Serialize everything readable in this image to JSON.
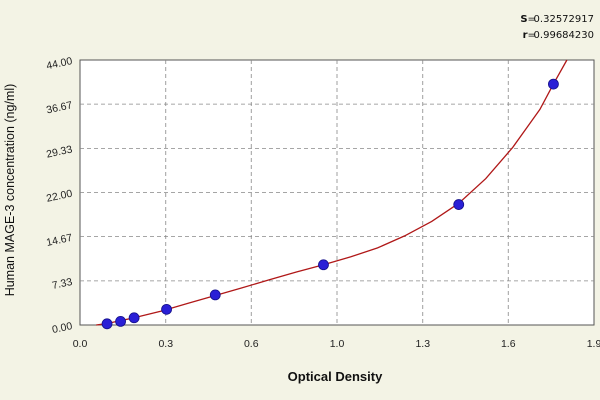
{
  "stats": {
    "s_label": "S",
    "s_value": "0.32572917",
    "r_label": "r",
    "r_value": "0.99684230"
  },
  "chart_data": {
    "type": "scatter",
    "xlabel": "Optical Density",
    "ylabel": "Human MAGE-3 concentration (ng/ml)",
    "xlim": [
      0.0,
      1.9
    ],
    "ylim": [
      0.0,
      44.0
    ],
    "x_ticks": [
      "0.0",
      "0.3",
      "0.6",
      "1.0",
      "1.3",
      "1.6",
      "1.9"
    ],
    "x_tick_values": [
      0.0,
      0.317,
      0.633,
      0.95,
      1.267,
      1.583,
      1.9
    ],
    "y_ticks": [
      "0.00",
      "7.33",
      "14.67",
      "22.00",
      "29.33",
      "36.67",
      "44.00"
    ],
    "y_tick_values": [
      0.0,
      7.33,
      14.67,
      22.0,
      29.33,
      36.67,
      44.0
    ],
    "grid": true,
    "series": [
      {
        "type": "scatter",
        "x": [
          0.1,
          0.15,
          0.2,
          0.32,
          0.5,
          0.9,
          1.4,
          1.75
        ],
        "y": [
          0.2,
          0.6,
          1.2,
          2.6,
          5.0,
          10.0,
          20.0,
          40.0
        ]
      },
      {
        "type": "line",
        "x": [
          0.06,
          0.1,
          0.2,
          0.3,
          0.4,
          0.5,
          0.6,
          0.7,
          0.8,
          0.9,
          1.0,
          1.1,
          1.2,
          1.3,
          1.4,
          1.5,
          1.6,
          1.7,
          1.75,
          1.8
        ],
        "y": [
          0.0,
          0.25,
          1.2,
          2.3,
          3.6,
          4.9,
          6.2,
          7.5,
          8.8,
          10.0,
          11.3,
          12.8,
          14.8,
          17.2,
          20.2,
          24.3,
          29.5,
          35.8,
          40.0,
          44.0
        ]
      }
    ],
    "colors": {
      "point": "#2a1fd6",
      "curve": "#b01818",
      "grid": "#888888",
      "plot_bg": "#ffffff",
      "page_bg": "#f3f3e5"
    }
  }
}
